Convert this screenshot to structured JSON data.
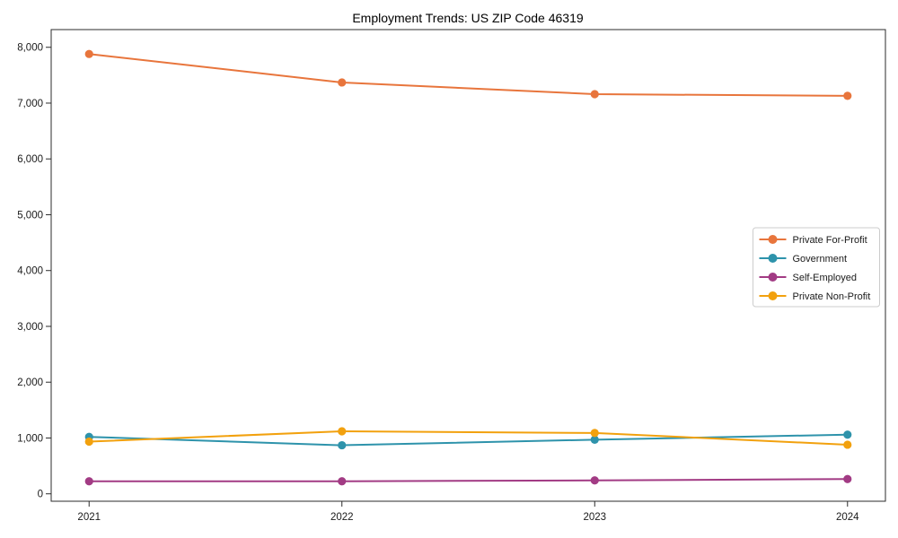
{
  "chart_data": {
    "type": "line",
    "title": "Employment Trends: US ZIP Code 46319",
    "categories": [
      "2021",
      "2022",
      "2023",
      "2024"
    ],
    "x_values": [
      2021,
      2022,
      2023,
      2024
    ],
    "series": [
      {
        "name": "Private For-Profit",
        "color": "#e8753c",
        "values": [
          7880,
          7370,
          7160,
          7130
        ]
      },
      {
        "name": "Government",
        "color": "#2e93ab",
        "values": [
          1020,
          870,
          970,
          1060
        ]
      },
      {
        "name": "Self-Employed",
        "color": "#a23b84",
        "values": [
          225,
          225,
          240,
          265
        ]
      },
      {
        "name": "Private Non-Profit",
        "color": "#f2a10e",
        "values": [
          935,
          1120,
          1090,
          880
        ]
      }
    ],
    "xlabel": "",
    "ylabel": "",
    "xlim": [
      2020.85,
      2024.15
    ],
    "ylim": [
      -133,
      8317
    ],
    "yticks": [
      0,
      1000,
      2000,
      3000,
      4000,
      5000,
      6000,
      7000,
      8000
    ],
    "ytick_labels": [
      "0",
      "1,000",
      "2,000",
      "3,000",
      "4,000",
      "5,000",
      "6,000",
      "7,000",
      "8,000"
    ],
    "grid": false,
    "frame": true,
    "legend_position": "center-right",
    "axis_color": "#2b2b2b",
    "legend_border_color": "#cccccc",
    "background_color": "#ffffff",
    "marker": "circle",
    "line_width": 2,
    "marker_radius": 4.6
  }
}
